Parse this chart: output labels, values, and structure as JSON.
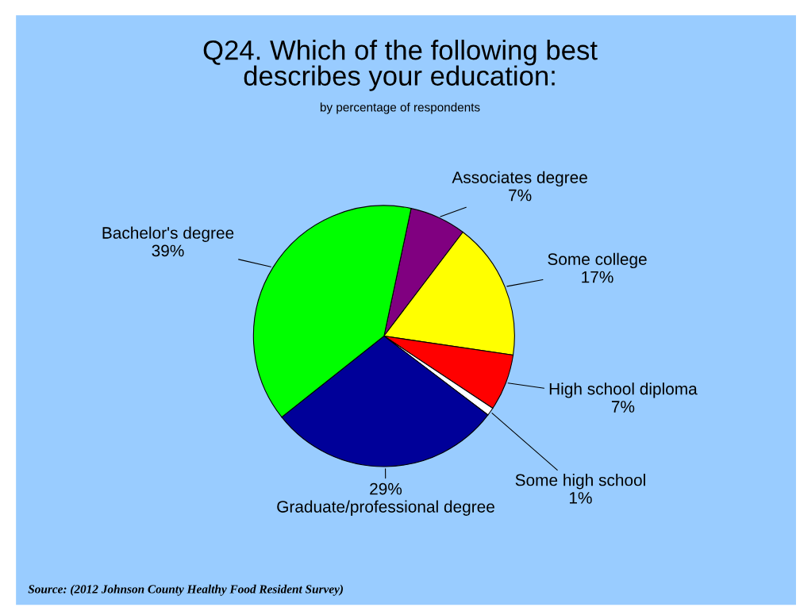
{
  "chart_data": {
    "type": "pie",
    "title": "Q24. Which of the following best\ndescribes your education:",
    "subtitle": "by percentage of respondents",
    "categories": [
      "Associates degree",
      "Some college",
      "High school diploma",
      "Some high school",
      "Graduate/professional degree",
      "Bachelor's degree"
    ],
    "values": [
      7,
      17,
      7,
      1,
      29,
      39
    ],
    "colors": [
      "#800080",
      "#ffff00",
      "#ff0000",
      "#ffffff",
      "#000099",
      "#00ff00"
    ],
    "value_labels": [
      "7%",
      "17%",
      "7%",
      "1%",
      "29%",
      "39%"
    ],
    "annotations": [
      "Source: (2012 Johnson County Healthy Food Resident Survey)"
    ],
    "legend": false
  }
}
